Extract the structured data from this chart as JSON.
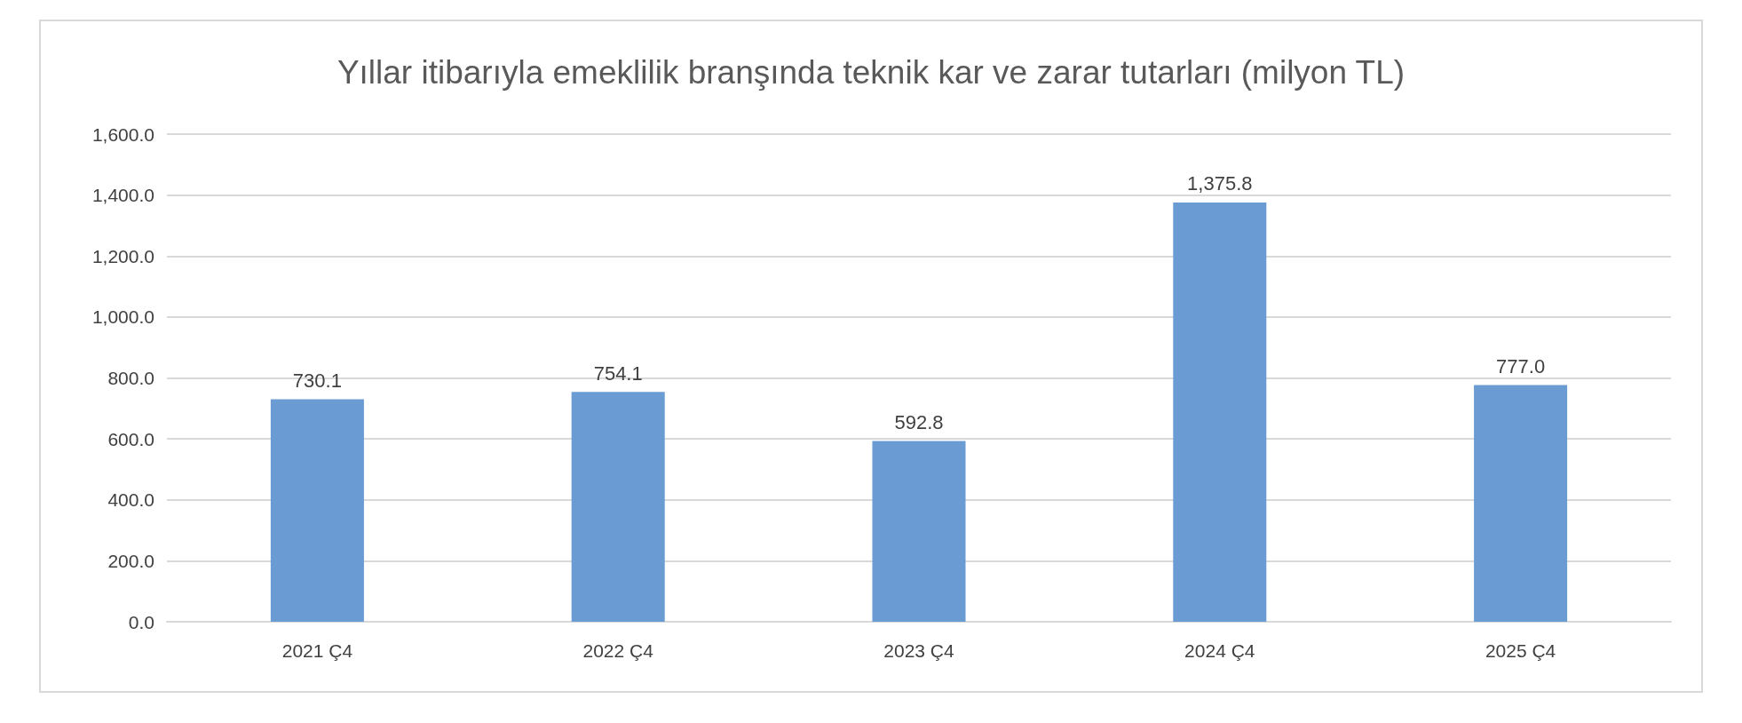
{
  "chart_data": {
    "type": "bar",
    "title": "Yıllar itibarıyla emeklilik branşında teknik kar ve zarar tutarları (milyon TL)",
    "categories": [
      "2021 Ç4",
      "2022 Ç4",
      "2023 Ç4",
      "2024 Ç4",
      "2025 Ç4"
    ],
    "values": [
      730.1,
      754.1,
      592.8,
      1375.8,
      777.0
    ],
    "value_labels": [
      "730.1",
      "754.1",
      "592.8",
      "1,375.8",
      "777.0"
    ],
    "color": "#6a9bd2",
    "ylim": [
      0,
      1600
    ],
    "yticks": [
      {
        "value": 0,
        "label": "0.0"
      },
      {
        "value": 200,
        "label": "200.0"
      },
      {
        "value": 400,
        "label": "400.0"
      },
      {
        "value": 600,
        "label": "600.0"
      },
      {
        "value": 800,
        "label": "800.0"
      },
      {
        "value": 1000,
        "label": "1,000.0"
      },
      {
        "value": 1200,
        "label": "1,200.0"
      },
      {
        "value": 1400,
        "label": "1,400.0"
      },
      {
        "value": 1600,
        "label": "1,600.0"
      }
    ],
    "grid": "y"
  }
}
